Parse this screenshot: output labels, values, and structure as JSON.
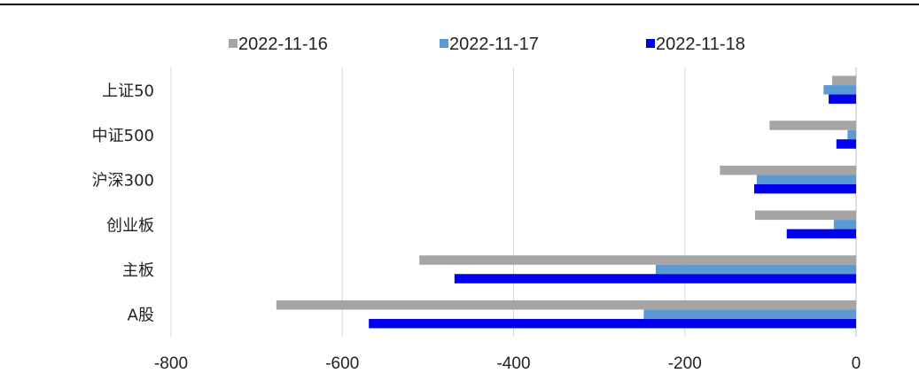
{
  "chart_data": {
    "type": "bar",
    "orientation": "horizontal",
    "categories": [
      "上证50",
      "中证500",
      "沪深300",
      "创业板",
      "主板",
      "A股"
    ],
    "series": [
      {
        "name": "2022-11-16",
        "color": "#a5a5a5",
        "values": [
          -28,
          -101,
          -159,
          -118,
          -510,
          -677
        ]
      },
      {
        "name": "2022-11-17",
        "color": "#5b9bd5",
        "values": [
          -38,
          -10,
          -116,
          -26,
          -234,
          -248
        ]
      },
      {
        "name": "2022-11-18",
        "color": "#0000ee",
        "values": [
          -32,
          -23,
          -119,
          -81,
          -469,
          -569
        ]
      }
    ],
    "xlim": [
      -800,
      0
    ],
    "xticks": [
      -800,
      -600,
      -400,
      -200,
      0
    ],
    "xtick_labels": [
      "-800",
      "-600",
      "-400",
      "-200",
      "0"
    ],
    "grid": "vertical",
    "legend_position": "top"
  }
}
